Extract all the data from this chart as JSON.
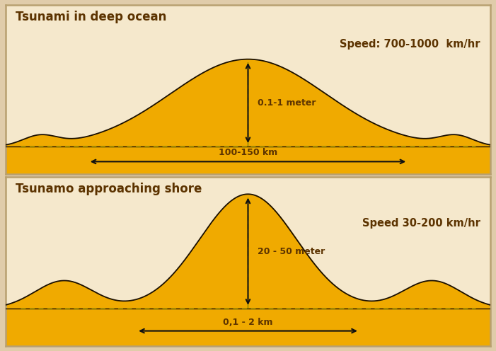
{
  "bg_color": "#f5e8cc",
  "wave_fill": "#f0aa00",
  "wave_edge": "#1a0f00",
  "text_color": "#5c3300",
  "title1": "Tsunami in deep ocean",
  "title2": "Tsunamo approaching shore",
  "speed1": "Speed: 700-1000  km/hr",
  "speed2": "Speed 30-200 km/hr",
  "amplitude1": "0.1-1 meter",
  "amplitude2": "20 - 50 meter",
  "wavelength1": "100-150 km",
  "wavelength2": "0,1 - 2 km",
  "fig_bg": "#e0ccaa",
  "border_color": "#b8a070",
  "arrow_color": "#111111",
  "dash_color": "#888800"
}
